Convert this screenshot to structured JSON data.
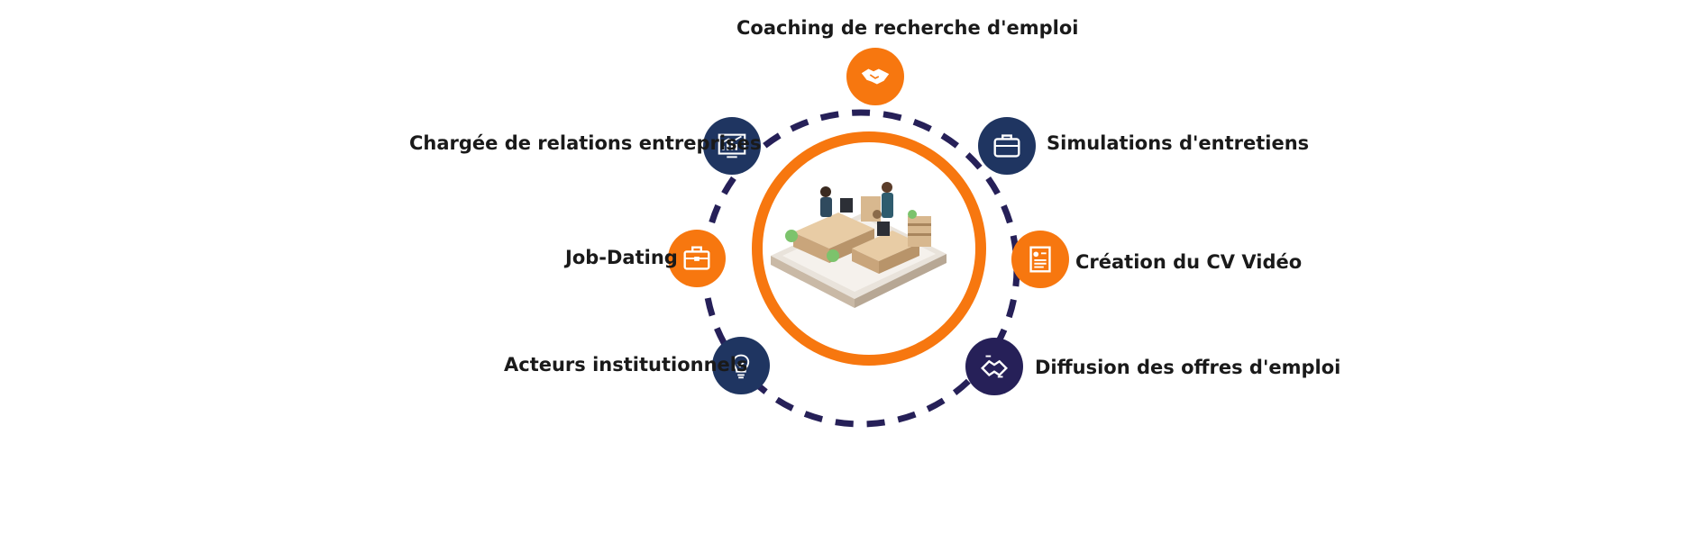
{
  "colors": {
    "orange": "#f7770f",
    "navy": "#1f3561",
    "purple": "#262058",
    "dash": "#262058"
  },
  "center": {
    "image": "office-isometric-illustration"
  },
  "items": [
    {
      "label": "Coaching de recherche d'emploi",
      "icon": "handshake-icon",
      "color": "orange"
    },
    {
      "label": "Simulations d'entretiens",
      "icon": "briefcase-icon",
      "color": "navy"
    },
    {
      "label": "Création du CV Vidéo",
      "icon": "resume-icon",
      "color": "orange"
    },
    {
      "label": "Diffusion des offres d'emploi",
      "icon": "handshake-icon",
      "color": "purple"
    },
    {
      "label": "Acteurs institutionnels",
      "icon": "lightbulb-icon",
      "color": "navy"
    },
    {
      "label": "Job-Dating",
      "icon": "toolbox-icon",
      "color": "orange"
    },
    {
      "label": "Chargée de relations entreprises",
      "icon": "chart-board-icon",
      "color": "navy"
    }
  ]
}
